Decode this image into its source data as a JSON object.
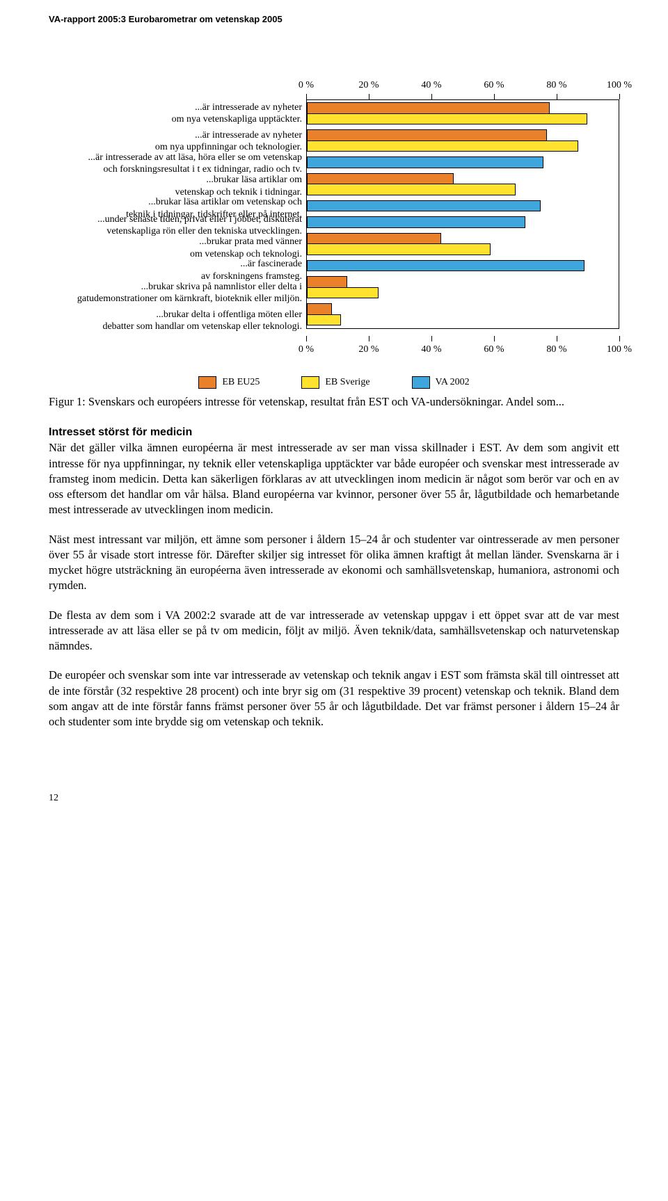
{
  "header": "VA-rapport 2005:3 Eurobarometrar om vetenskap 2005",
  "axis_ticks": [
    "0 %",
    "20 %",
    "40 %",
    "60 %",
    "80 %",
    "100 %"
  ],
  "series": [
    {
      "key": "eu25",
      "label": "EB EU25",
      "color": "#e8812a"
    },
    {
      "key": "sverige",
      "label": "EB Sverige",
      "color": "#ffe22e"
    },
    {
      "key": "va2002",
      "label": "VA 2002",
      "color": "#3fa5dd"
    }
  ],
  "categories": [
    {
      "label": "...är intresserade av nyheter\nom nya vetenskapliga upptäckter.",
      "values": {
        "eu25": 78,
        "sverige": 90,
        "va2002": null
      }
    },
    {
      "label": "...är intresserade av nyheter\nom nya uppfinningar och teknologier.",
      "values": {
        "eu25": 77,
        "sverige": 87,
        "va2002": null
      }
    },
    {
      "label": "...är intresserade av att läsa, höra eller se om vetenskap\noch forskningsresultat i t ex tidningar, radio och tv.",
      "values": {
        "eu25": null,
        "sverige": null,
        "va2002": 76
      }
    },
    {
      "label": "...brukar läsa artiklar om\nvetenskap och teknik i tidningar.",
      "values": {
        "eu25": 47,
        "sverige": 67,
        "va2002": null
      }
    },
    {
      "label": "...brukar läsa artiklar om vetenskap och\nteknik i tidningar, tidskrifter eller på internet.",
      "values": {
        "eu25": null,
        "sverige": null,
        "va2002": 75
      }
    },
    {
      "label": "...under senaste tiden, privat eller i jobbet, diskuterat\nvetenskapliga rön eller den tekniska utvecklingen.",
      "values": {
        "eu25": null,
        "sverige": null,
        "va2002": 70
      }
    },
    {
      "label": "...brukar prata med vänner\nom vetenskap och teknologi.",
      "values": {
        "eu25": 43,
        "sverige": 59,
        "va2002": null
      }
    },
    {
      "label": "...är fascinerade\nav forskningens framsteg.",
      "values": {
        "eu25": null,
        "sverige": null,
        "va2002": 89
      }
    },
    {
      "label": "...brukar skriva på namnlistor eller delta i\ngatudemonstrationer om kärnkraft, bioteknik eller miljön.",
      "values": {
        "eu25": 13,
        "sverige": 23,
        "va2002": null
      }
    },
    {
      "label": "...brukar delta i offentliga möten eller\ndebatter som handlar om vetenskap eller teknologi.",
      "values": {
        "eu25": 8,
        "sverige": 11,
        "va2002": null
      }
    }
  ],
  "figcaption": "Figur 1: Svenskars och européers intresse för vetenskap, resultat från EST och VA-undersökningar. Andel som...",
  "section_heading": "Intresset störst för medicin",
  "paragraphs": [
    "När det gäller vilka ämnen européerna är mest intresserade av ser man vissa skillnader i EST. Av dem som angivit ett intresse för nya uppfinningar, ny teknik eller vetenskapliga upptäck­ter var både européer och svenskar mest intresserade av framsteg inom medicin. Detta kan säkerligen förklaras av att utvecklingen inom medicin är något som berör var och en av oss eftersom det handlar om vår hälsa. Bland européerna var kvinnor, personer över 55 år, lågut­bildade och hemarbetande mest intresserade av utvecklingen inom medicin.",
    "Näst mest intressant var miljön, ett ämne som personer i åldern 15–24 år och studenter var ointresserade av men personer över 55 år visade stort intresse för. Därefter skiljer sig intresset för olika ämnen kraftigt åt mellan länder. Svenskarna är i mycket högre utsträckning än eu­ropéerna även intresserade av ekonomi och samhällsvetenskap, humaniora, astronomi och rymden.",
    "De flesta av dem som i VA 2002:2 svarade att de var intresserade av vetenskap uppgav i ett öppet svar att de var mest intresserade av att läsa eller se på tv om medicin, följt av miljö. Även teknik/data, samhällsvetenskap och naturvetenskap nämndes.",
    "De européer och svenskar som inte var intresserade av vetenskap och teknik angav i EST som främsta skäl till ointresset att de inte förstår (32 respektive 28 procent) och inte bryr sig om (31 respektive 39 procent) vetenskap och teknik. Bland dem som angav att de inte förstår fanns främst personer över 55 år och lågutbildade. Det var främst personer i åldern 15–24 år och studenter som inte brydde sig om vetenskap och teknik."
  ],
  "page_number": "12"
}
